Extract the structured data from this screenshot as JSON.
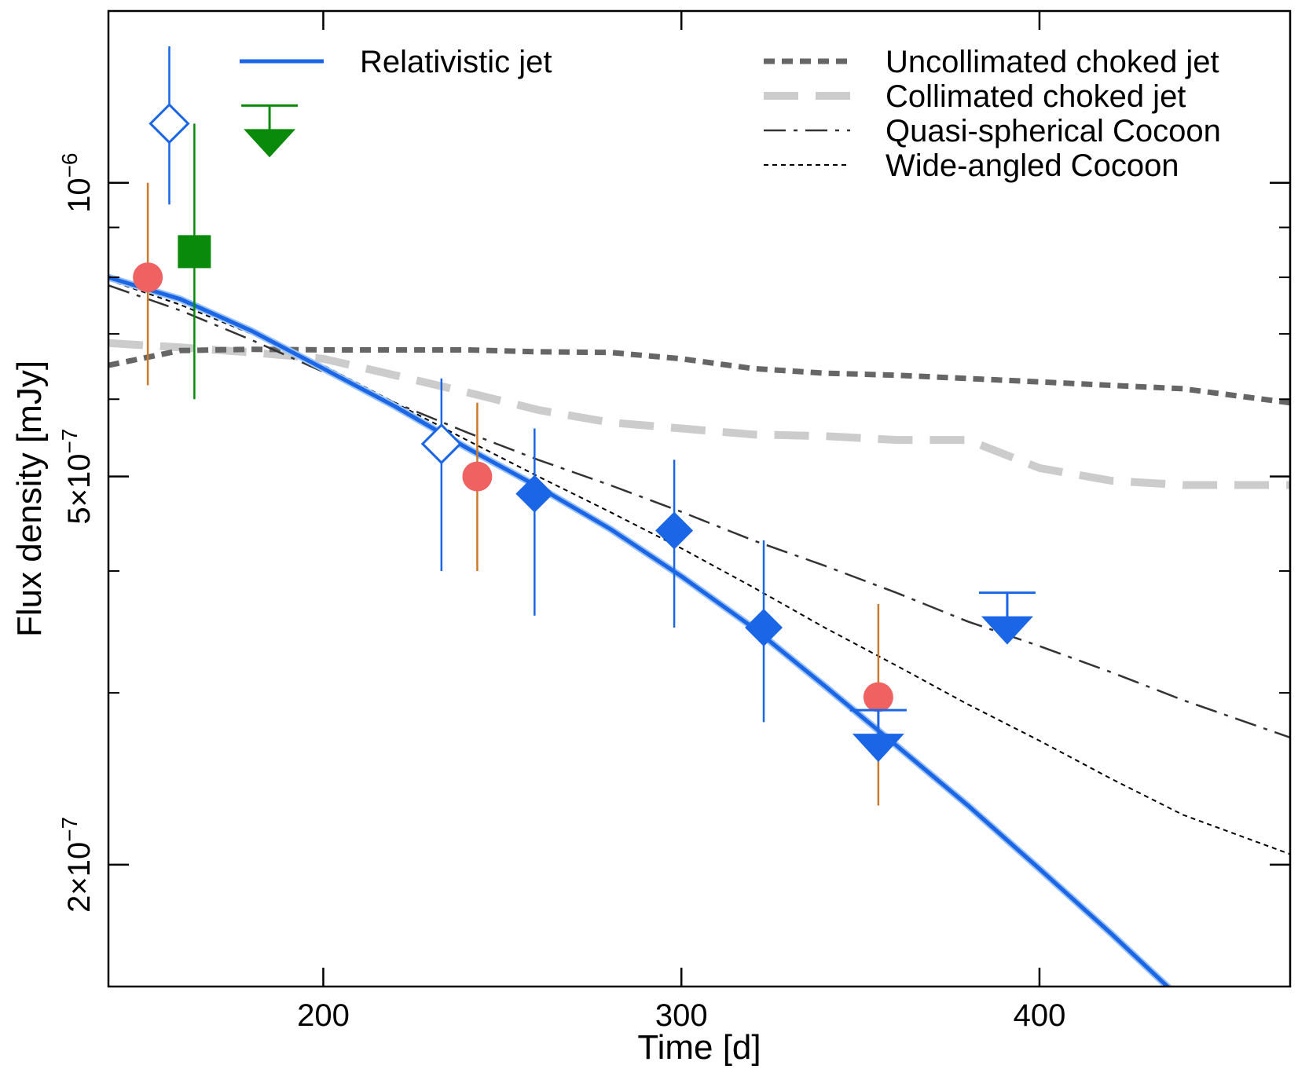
{
  "chart_data": {
    "type": "scatter",
    "xlabel": "Time [d]",
    "ylabel": "Flux density [mJy]",
    "xlim": [
      140,
      470
    ],
    "ylim": [
      1.5e-07,
      1.5e-06
    ],
    "yscale": "log",
    "grid": false,
    "legend_placement": "top",
    "x_ticks": [
      {
        "value": 200,
        "label": "200"
      },
      {
        "value": 300,
        "label": "300"
      },
      {
        "value": 400,
        "label": "400"
      }
    ],
    "y_ticks": [
      {
        "value": 1e-06,
        "base": "10",
        "exp": "−6"
      },
      {
        "value": 5e-07,
        "base": "5×10",
        "exp": "−7"
      },
      {
        "value": 2e-07,
        "base": "2×10",
        "exp": "−7"
      }
    ],
    "y_minor_ticks": [
      3e-07,
      4e-07,
      6e-07,
      7e-07,
      8e-07,
      9e-07
    ],
    "legend": [
      {
        "name": "Relativistic jet",
        "color": "#1a66e6",
        "dash": "solid"
      },
      {
        "name": "Uncollimated choked jet",
        "color": "#666666",
        "dash": "short-dash"
      },
      {
        "name": "Collimated choked jet",
        "color": "#cccccc",
        "dash": "long-dash"
      },
      {
        "name": "Quasi-spherical Cocoon",
        "color": "#333333",
        "dash": "dash-dot"
      },
      {
        "name": "Wide-angled Cocoon",
        "color": "#000000",
        "dash": "dotted"
      }
    ],
    "series": [
      {
        "name": "Relativistic jet",
        "style": "model",
        "color": "#1a66e6",
        "points": [
          [
            140,
            8e-07
          ],
          [
            160,
            7.6e-07
          ],
          [
            180,
            7.05e-07
          ],
          [
            200,
            6.45e-07
          ],
          [
            220,
            5.9e-07
          ],
          [
            240,
            5.35e-07
          ],
          [
            260,
            4.88e-07
          ],
          [
            280,
            4.42e-07
          ],
          [
            300,
            3.95e-07
          ],
          [
            320,
            3.5e-07
          ],
          [
            340,
            3.05e-07
          ],
          [
            360,
            2.65e-07
          ],
          [
            380,
            2.3e-07
          ],
          [
            400,
            1.98e-07
          ],
          [
            420,
            1.7e-07
          ],
          [
            440,
            1.45e-07
          ]
        ]
      },
      {
        "name": "Uncollimated choked jet",
        "style": "model",
        "color": "#666666",
        "points": [
          [
            140,
            6.5e-07
          ],
          [
            160,
            6.73e-07
          ],
          [
            180,
            6.75e-07
          ],
          [
            200,
            6.74e-07
          ],
          [
            220,
            6.74e-07
          ],
          [
            240,
            6.74e-07
          ],
          [
            260,
            6.71e-07
          ],
          [
            280,
            6.7e-07
          ],
          [
            300,
            6.6e-07
          ],
          [
            320,
            6.45e-07
          ],
          [
            340,
            6.38e-07
          ],
          [
            360,
            6.35e-07
          ],
          [
            380,
            6.3e-07
          ],
          [
            400,
            6.25e-07
          ],
          [
            420,
            6.2e-07
          ],
          [
            440,
            6.15e-07
          ],
          [
            470,
            5.95e-07
          ]
        ]
      },
      {
        "name": "Collimated choked jet",
        "style": "model",
        "color": "#cccccc",
        "points": [
          [
            140,
            6.85e-07
          ],
          [
            160,
            6.78e-07
          ],
          [
            180,
            6.7e-07
          ],
          [
            200,
            6.6e-07
          ],
          [
            220,
            6.35e-07
          ],
          [
            240,
            6.1e-07
          ],
          [
            260,
            5.85e-07
          ],
          [
            280,
            5.68e-07
          ],
          [
            300,
            5.6e-07
          ],
          [
            320,
            5.52e-07
          ],
          [
            340,
            5.5e-07
          ],
          [
            360,
            5.45e-07
          ],
          [
            380,
            5.45e-07
          ],
          [
            400,
            5.1e-07
          ],
          [
            420,
            4.95e-07
          ],
          [
            440,
            4.9e-07
          ],
          [
            470,
            4.9e-07
          ]
        ]
      },
      {
        "name": "Quasi-spherical Cocoon",
        "style": "model",
        "color": "#333333",
        "points": [
          [
            140,
            7.85e-07
          ],
          [
            160,
            7.4e-07
          ],
          [
            180,
            6.9e-07
          ],
          [
            200,
            6.4e-07
          ],
          [
            220,
            5.95e-07
          ],
          [
            240,
            5.55e-07
          ],
          [
            260,
            5.2e-07
          ],
          [
            280,
            4.9e-07
          ],
          [
            300,
            4.6e-07
          ],
          [
            320,
            4.3e-07
          ],
          [
            340,
            4.05e-07
          ],
          [
            360,
            3.8e-07
          ],
          [
            380,
            3.55e-07
          ],
          [
            400,
            3.35e-07
          ],
          [
            420,
            3.15e-07
          ],
          [
            440,
            2.95e-07
          ],
          [
            470,
            2.7e-07
          ]
        ]
      },
      {
        "name": "Wide-angled Cocoon",
        "style": "model",
        "color": "#000000",
        "points": [
          [
            140,
            7.95e-07
          ],
          [
            160,
            7.5e-07
          ],
          [
            180,
            7e-07
          ],
          [
            200,
            6.5e-07
          ],
          [
            220,
            5.95e-07
          ],
          [
            240,
            5.45e-07
          ],
          [
            260,
            5e-07
          ],
          [
            280,
            4.6e-07
          ],
          [
            300,
            4.22e-07
          ],
          [
            320,
            3.85e-07
          ],
          [
            340,
            3.5e-07
          ],
          [
            360,
            3.2e-07
          ],
          [
            380,
            2.92e-07
          ],
          [
            400,
            2.68e-07
          ],
          [
            420,
            2.45e-07
          ],
          [
            440,
            2.25e-07
          ],
          [
            470,
            2.05e-07
          ]
        ]
      },
      {
        "name": "",
        "style": "points",
        "marker": "circle",
        "color": "#f06262",
        "errcolor": "#cc7a29",
        "points": [
          {
            "x": 151,
            "y": 8e-07,
            "lo": 6.2e-07,
            "hi": 1e-06
          },
          {
            "x": 243,
            "y": 5e-07,
            "lo": 4e-07,
            "hi": 5.95e-07
          },
          {
            "x": 355,
            "y": 2.97e-07,
            "lo": 2.3e-07,
            "hi": 3.7e-07
          }
        ]
      },
      {
        "name": "",
        "style": "points",
        "marker": "square",
        "color": "#0a8a0a",
        "errcolor": "#0a8a0a",
        "points": [
          {
            "x": 164,
            "y": 8.5e-07,
            "lo": 6e-07,
            "hi": 1.15e-06
          }
        ]
      },
      {
        "name": "",
        "style": "points",
        "marker": "diamond-open",
        "color": "#1a66e6",
        "errcolor": "#1a66e6",
        "points": [
          {
            "x": 157,
            "y": 1.15e-06,
            "lo": 9.5e-07,
            "hi": 1.38e-06
          },
          {
            "x": 233,
            "y": 5.4e-07,
            "lo": 4e-07,
            "hi": 6.3e-07
          }
        ]
      },
      {
        "name": "",
        "style": "points",
        "marker": "diamond-filled",
        "color": "#1a66e6",
        "errcolor": "#1a66e6",
        "points": [
          {
            "x": 259,
            "y": 4.8e-07,
            "lo": 3.6e-07,
            "hi": 5.6e-07
          },
          {
            "x": 298,
            "y": 4.4e-07,
            "lo": 3.5e-07,
            "hi": 5.2e-07
          },
          {
            "x": 323,
            "y": 3.5e-07,
            "lo": 2.8e-07,
            "hi": 4.3e-07
          }
        ]
      },
      {
        "name": "",
        "style": "upper-limits",
        "marker": "triangle-down",
        "color": "#0a8a0a",
        "points": [
          {
            "x": 185,
            "y": 1.2e-06
          }
        ]
      },
      {
        "name": "",
        "style": "upper-limits",
        "marker": "triangle-down",
        "color": "#1a66e6",
        "points": [
          {
            "x": 355,
            "y": 2.88e-07
          },
          {
            "x": 391,
            "y": 3.8e-07
          }
        ]
      }
    ]
  }
}
